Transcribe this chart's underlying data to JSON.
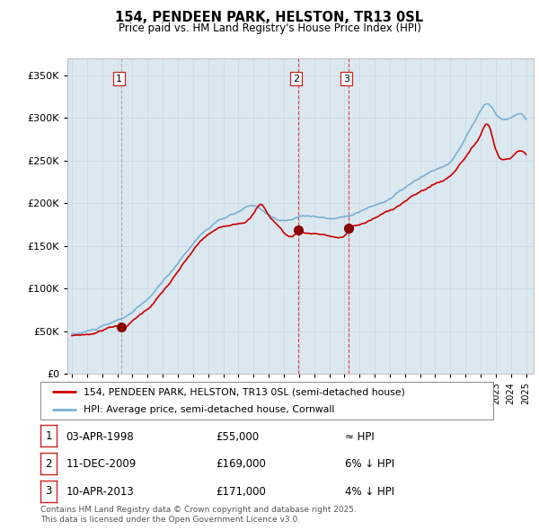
{
  "title": "154, PENDEEN PARK, HELSTON, TR13 0SL",
  "subtitle": "Price paid vs. HM Land Registry's House Price Index (HPI)",
  "legend_line1": "154, PENDEEN PARK, HELSTON, TR13 0SL (semi-detached house)",
  "legend_line2": "HPI: Average price, semi-detached house, Cornwall",
  "footer1": "Contains HM Land Registry data © Crown copyright and database right 2025.",
  "footer2": "This data is licensed under the Open Government Licence v3.0.",
  "transactions": [
    {
      "num": 1,
      "date": "03-APR-1998",
      "price": "55,000",
      "rel": "≈ HPI",
      "year": 1998.25
    },
    {
      "num": 2,
      "date": "11-DEC-2009",
      "price": "169,000",
      "rel": "6% ↓ HPI",
      "year": 2009.95
    },
    {
      "num": 3,
      "date": "10-APR-2013",
      "price": "171,000",
      "rel": "4% ↓ HPI",
      "year": 2013.28
    }
  ],
  "price_line_color": "#cc0000",
  "hpi_line_color": "#7ab0d4",
  "vline1_color": "#aaaaaa",
  "vline23_color": "#dd4444",
  "dot_color": "#880000",
  "grid_color": "#c8d8e8",
  "background_color": "#ffffff",
  "chart_bg_color": "#dce8f0",
  "ylim": [
    0,
    370000
  ],
  "xlim_start": 1994.7,
  "xlim_end": 2025.5,
  "yticks": [
    0,
    50000,
    100000,
    150000,
    200000,
    250000,
    300000,
    350000
  ],
  "xticks": [
    1995,
    1996,
    1997,
    1998,
    1999,
    2000,
    2001,
    2002,
    2003,
    2004,
    2005,
    2006,
    2007,
    2008,
    2009,
    2010,
    2011,
    2012,
    2013,
    2014,
    2015,
    2016,
    2017,
    2018,
    2019,
    2020,
    2021,
    2022,
    2023,
    2024,
    2025
  ]
}
